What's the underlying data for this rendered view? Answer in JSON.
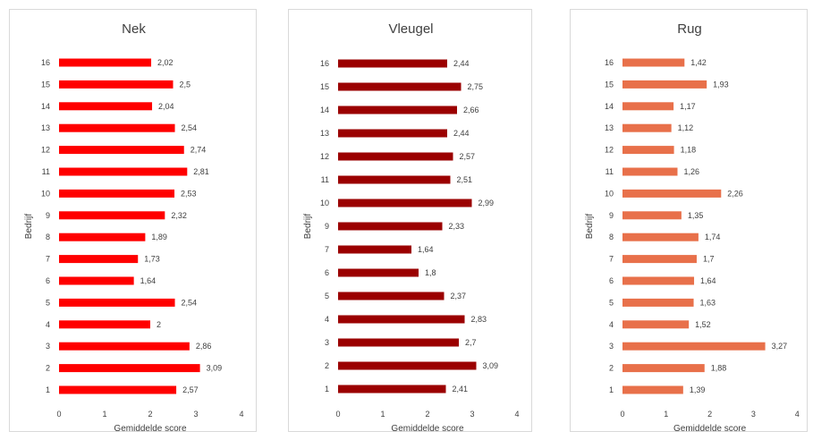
{
  "chart_data": [
    {
      "type": "bar",
      "orientation": "horizontal",
      "title": "Nek",
      "xlabel": "Gemiddelde score",
      "ylabel": "Bedrijf",
      "xlim": [
        0,
        4
      ],
      "xticks": [
        "0",
        "1",
        "2",
        "3",
        "4"
      ],
      "grid": false,
      "color": "#ff0000",
      "categories": [
        "1",
        "2",
        "3",
        "4",
        "5",
        "6",
        "7",
        "8",
        "9",
        "10",
        "11",
        "12",
        "13",
        "14",
        "15",
        "16"
      ],
      "values": [
        2.57,
        3.09,
        2.86,
        2,
        2.54,
        1.64,
        1.73,
        1.89,
        2.32,
        2.53,
        2.81,
        2.74,
        2.54,
        2.04,
        2.5,
        2.02
      ],
      "labels": [
        "2,57",
        "3,09",
        "2,86",
        "2",
        "2,54",
        "1,64",
        "1,73",
        "1,89",
        "2,32",
        "2,53",
        "2,81",
        "2,74",
        "2,54",
        "2,04",
        "2,5",
        "2,02"
      ]
    },
    {
      "type": "bar",
      "orientation": "horizontal",
      "title": "Vleugel",
      "xlabel": "Gemiddelde score",
      "ylabel": "Bedrijf",
      "xlim": [
        0,
        4
      ],
      "xticks": [
        "0",
        "1",
        "2",
        "3",
        "4"
      ],
      "grid": false,
      "color": "#9b0000",
      "categories": [
        "1",
        "2",
        "3",
        "4",
        "5",
        "6",
        "7",
        "9",
        "10",
        "11",
        "12",
        "13",
        "14",
        "15",
        "16"
      ],
      "values": [
        2.41,
        3.09,
        2.7,
        2.83,
        2.37,
        1.8,
        1.64,
        2.33,
        2.99,
        2.51,
        2.57,
        2.44,
        2.66,
        2.75,
        2.44
      ],
      "labels": [
        "2,41",
        "3,09",
        "2,7",
        "2,83",
        "2,37",
        "1,8",
        "1,64",
        "2,33",
        "2,99",
        "2,51",
        "2,57",
        "2,44",
        "2,66",
        "2,75",
        "2,44"
      ]
    },
    {
      "type": "bar",
      "orientation": "horizontal",
      "title": "Rug",
      "xlabel": "Gemiddelde score",
      "ylabel": "Bedrijf",
      "xlim": [
        0,
        4
      ],
      "xticks": [
        "0",
        "1",
        "2",
        "3",
        "4"
      ],
      "grid": false,
      "color": "#e8704a",
      "categories": [
        "1",
        "2",
        "3",
        "4",
        "5",
        "6",
        "7",
        "8",
        "9",
        "10",
        "11",
        "12",
        "13",
        "14",
        "15",
        "16"
      ],
      "values": [
        1.39,
        1.88,
        3.27,
        1.52,
        1.63,
        1.64,
        1.7,
        1.74,
        1.35,
        2.26,
        1.26,
        1.18,
        1.12,
        1.17,
        1.93,
        1.42
      ],
      "labels": [
        "1,39",
        "1,88",
        "3,27",
        "1,52",
        "1,63",
        "1,64",
        "1,7",
        "1,74",
        "1,35",
        "2,26",
        "1,26",
        "1,18",
        "1,12",
        "1,17",
        "1,93",
        "1,42"
      ]
    }
  ]
}
